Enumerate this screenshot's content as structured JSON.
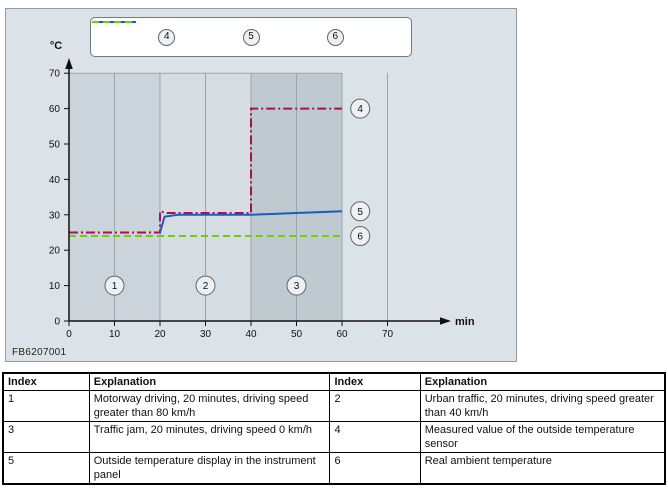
{
  "chart_panel": {
    "figure_code": "FB6207001"
  },
  "chart_data": {
    "type": "line",
    "title": "",
    "ylabel": "°C",
    "xlabel": "min",
    "xlim": [
      0,
      80
    ],
    "ylim": [
      0,
      70
    ],
    "xticks": [
      0,
      10,
      20,
      30,
      40,
      50,
      60,
      70
    ],
    "yticks": [
      0,
      10,
      20,
      30,
      40,
      50,
      60,
      70
    ],
    "grid": "vertical",
    "legend_position": "top",
    "bands": [
      {
        "x0": 0,
        "x1": 20,
        "color": "#cbd4da"
      },
      {
        "x0": 20,
        "x1": 40,
        "color": "#d6dde2"
      },
      {
        "x0": 40,
        "x1": 60,
        "color": "#bfc9d0"
      }
    ],
    "series": [
      {
        "name": "4",
        "color": "#a8104e",
        "style": "dashdot",
        "points": [
          [
            0,
            25
          ],
          [
            20,
            25
          ],
          [
            20,
            31
          ],
          [
            21.5,
            30.5
          ],
          [
            40,
            30.5
          ],
          [
            40,
            60
          ],
          [
            60,
            60
          ]
        ]
      },
      {
        "name": "5",
        "color": "#1b5bc4",
        "style": "solid",
        "points": [
          [
            20,
            25
          ],
          [
            21,
            29.5
          ],
          [
            24,
            30
          ],
          [
            40,
            30
          ],
          [
            60,
            31
          ]
        ]
      },
      {
        "name": "6",
        "color": "#6fce11",
        "style": "dashed",
        "points": [
          [
            0,
            24
          ],
          [
            60,
            24
          ]
        ]
      }
    ],
    "region_markers": [
      {
        "label": "1",
        "x": 10,
        "y": 10
      },
      {
        "label": "2",
        "x": 30,
        "y": 10
      },
      {
        "label": "3",
        "x": 50,
        "y": 10
      }
    ],
    "series_markers": [
      {
        "label": "4",
        "x": 64,
        "y": 60
      },
      {
        "label": "5",
        "x": 64,
        "y": 31
      },
      {
        "label": "6",
        "x": 64,
        "y": 24
      }
    ]
  },
  "legend": {
    "items": [
      {
        "label": "4",
        "color": "#a8104e",
        "style": "dashdot"
      },
      {
        "label": "5",
        "color": "#1b5bc4",
        "style": "solid"
      },
      {
        "label": "6",
        "color": "#6fce11",
        "style": "dashed"
      }
    ]
  },
  "table": {
    "headers": [
      "Index",
      "Explanation",
      "Index",
      "Explanation"
    ],
    "rows": [
      [
        "1",
        "Motorway driving, 20 minutes, driving speed greater than 80 km/h",
        "2",
        "Urban traffic, 20 minutes, driving speed greater than 40 km/h"
      ],
      [
        "3",
        "Traffic jam, 20 minutes, driving speed 0 km/h",
        "4",
        "Measured value of the outside temperature sensor"
      ],
      [
        "5",
        "Outside temperature display in the instrument panel",
        "6",
        "Real ambient temperature"
      ]
    ]
  }
}
